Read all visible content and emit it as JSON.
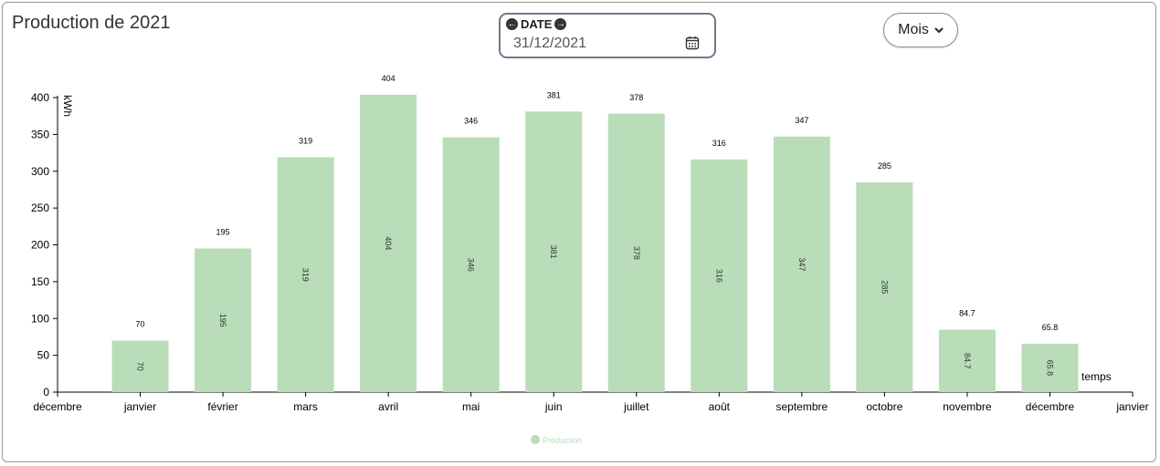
{
  "header": {
    "title": "Production de 2021"
  },
  "date_picker": {
    "label": "DATE",
    "value": "31/12/2021",
    "prev_icon": "arrow-left-circle-icon",
    "next_icon": "arrow-right-circle-icon",
    "calendar_icon": "calendar-icon"
  },
  "period_select": {
    "selected": "Mois",
    "icon": "chevron-down-icon"
  },
  "colors": {
    "bar": "#b8ddb8",
    "axis": "#000000"
  },
  "chart_data": {
    "type": "bar",
    "x_tick_labels": [
      "décembre",
      "janvier",
      "février",
      "mars",
      "avril",
      "mai",
      "juin",
      "juillet",
      "août",
      "septembre",
      "octobre",
      "novembre",
      "décembre",
      "janvier"
    ],
    "categories": [
      "janvier",
      "février",
      "mars",
      "avril",
      "mai",
      "juin",
      "juillet",
      "août",
      "septembre",
      "octobre",
      "novembre",
      "décembre"
    ],
    "series": [
      {
        "name": "Production",
        "values": [
          70,
          195,
          319,
          404,
          346,
          381,
          378,
          316,
          347,
          285,
          84.7,
          65.8
        ]
      }
    ],
    "top_labels": [
      "70",
      "195",
      "319",
      "404",
      "346",
      "381",
      "378",
      "316",
      "347",
      "285",
      "84.7",
      "65.8"
    ],
    "inner_labels": [
      "70",
      "195",
      "319",
      "404",
      "346",
      "381",
      "378",
      "316",
      "347",
      "285",
      "84.7",
      "65.8"
    ],
    "ylabel": "kWh",
    "xlabel": "temps",
    "ylim": [
      0,
      400
    ],
    "yticks": [
      0,
      50,
      100,
      150,
      200,
      250,
      300,
      350,
      400
    ],
    "grid": false,
    "legend": "bottom-center"
  }
}
